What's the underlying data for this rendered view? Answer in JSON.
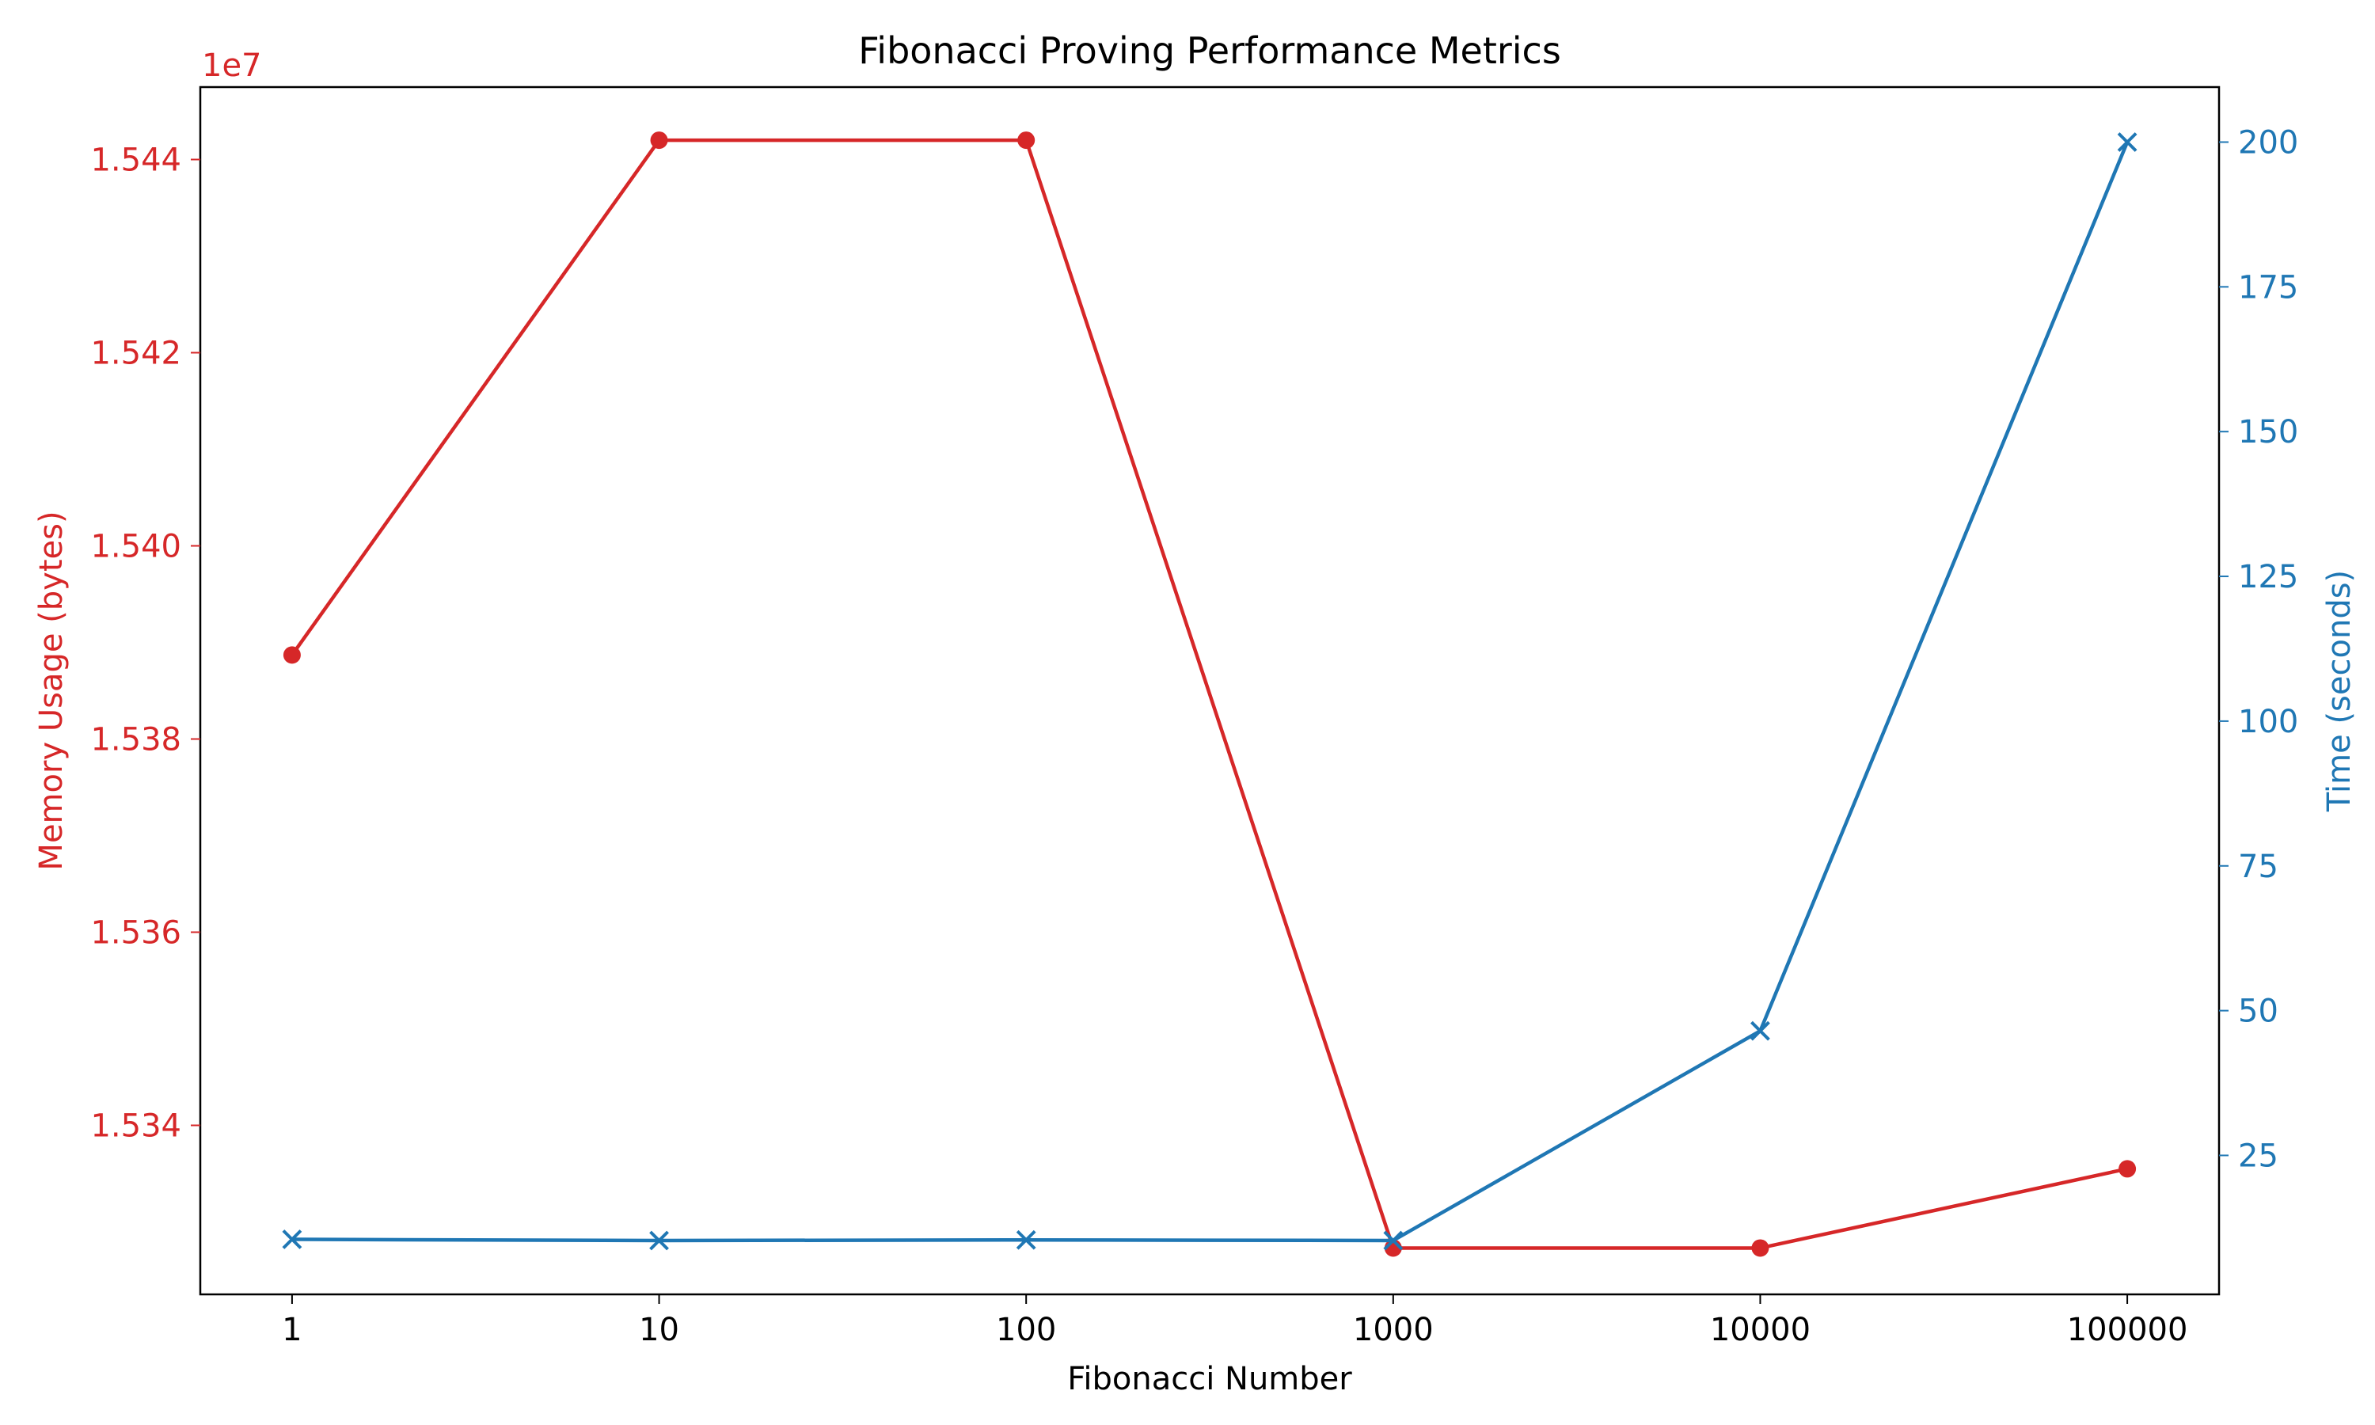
{
  "chart_data": {
    "type": "line",
    "title": "Fibonacci Proving Performance Metrics",
    "xlabel": "Fibonacci Number",
    "x_categories": [
      "1",
      "10",
      "100",
      "1000",
      "10000",
      "100000"
    ],
    "left_axis": {
      "label": "Memory Usage (bytes)",
      "color": "#d62728",
      "offset_text": "1e7",
      "ylim": [
        1.53225,
        1.54475
      ],
      "ticks": [
        1.534,
        1.536,
        1.538,
        1.54,
        1.542,
        1.544
      ],
      "tick_labels": [
        "1.534",
        "1.536",
        "1.538",
        "1.540",
        "1.542",
        "1.544"
      ]
    },
    "right_axis": {
      "label": "Time (seconds)",
      "color": "#1f77b4",
      "ylim": [
        1.0,
        209.5
      ],
      "ticks": [
        25,
        50,
        75,
        100,
        125,
        150,
        175,
        200
      ],
      "tick_labels": [
        "25",
        "50",
        "75",
        "100",
        "125",
        "150",
        "175",
        "200"
      ]
    },
    "series": [
      {
        "axis": "left",
        "color": "#d62728",
        "marker": "circle",
        "values": [
          1.53887,
          1.5442,
          1.5442,
          1.53273,
          1.53273,
          1.53355
        ]
      },
      {
        "axis": "right",
        "color": "#1f77b4",
        "marker": "x",
        "values": [
          10.5,
          10.3,
          10.4,
          10.3,
          46.5,
          200.0
        ]
      }
    ],
    "grid": false
  }
}
